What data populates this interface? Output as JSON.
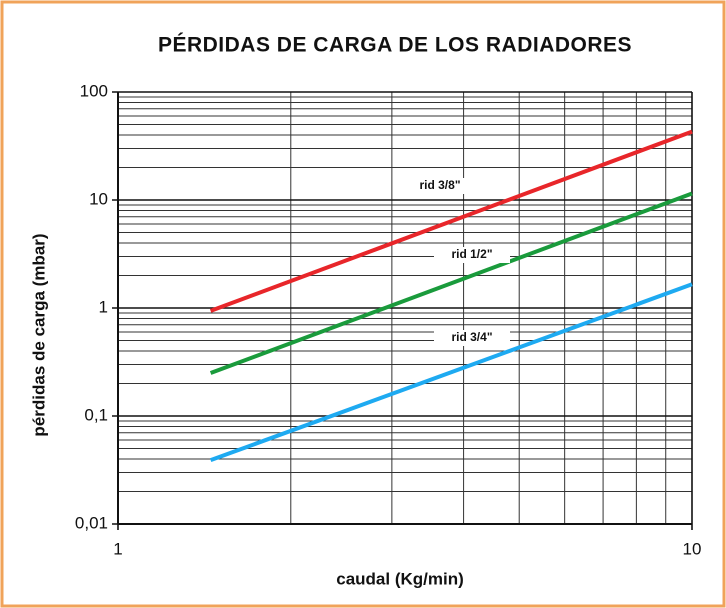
{
  "chart_data": {
    "type": "line",
    "title": "PÉRDIDAS DE CARGA DE LOS RADIADORES",
    "xlabel": "caudal (Kg/min)",
    "ylabel": "pérdidas de carga (mbar)",
    "xscale": "log",
    "yscale": "log",
    "grid": true,
    "x": [
      1.45,
      10
    ],
    "series": [
      {
        "name": "rid 3/8\"",
        "color": "#e8262a",
        "values": [
          0.94,
          43
        ]
      },
      {
        "name": "rid 1/2\"",
        "color": "#1a9b3c",
        "values": [
          0.25,
          11.5
        ]
      },
      {
        "name": "rid 3/4\"",
        "color": "#1eaaf1",
        "values": [
          0.039,
          1.66
        ]
      }
    ],
    "xlim": [
      1,
      10
    ],
    "ylim": [
      0.01,
      100
    ],
    "xticks": [
      1,
      10
    ],
    "yticks": [
      {
        "value": 0.01,
        "label": "0,01"
      },
      {
        "value": 0.1,
        "label": "0,1"
      },
      1,
      10,
      100
    ],
    "xminorticks": [
      2,
      3,
      4,
      5,
      6,
      7,
      8,
      9
    ],
    "yminorticks": [
      0.02,
      0.03,
      0.04,
      0.05,
      0.06,
      0.07,
      0.08,
      0.09,
      0.2,
      0.3,
      0.4,
      0.5,
      0.6,
      0.7,
      0.8,
      0.9,
      2,
      3,
      4,
      5,
      6,
      7,
      8,
      9,
      20,
      30,
      40,
      50,
      60,
      70,
      80,
      90
    ]
  }
}
